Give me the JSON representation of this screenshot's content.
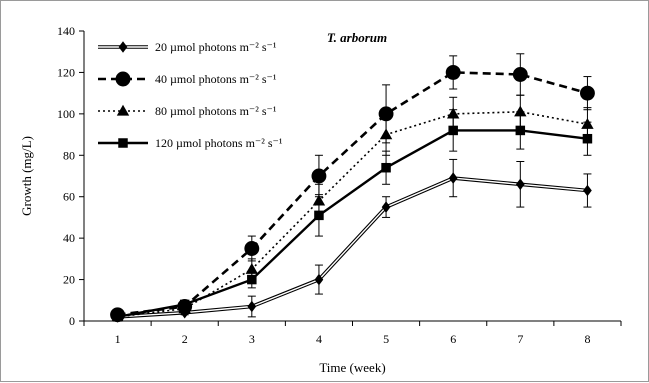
{
  "chart_data": {
    "type": "line",
    "title": "T. arborum",
    "xlabel": "Time (week)",
    "ylabel": "Growth (mg/L)",
    "categories": [
      "1",
      "2",
      "3",
      "4",
      "5",
      "6",
      "7",
      "8"
    ],
    "ylim": [
      0,
      140
    ],
    "yticks": [
      "0",
      "20",
      "40",
      "60",
      "80",
      "100",
      "120",
      "140"
    ],
    "grid": false,
    "legend_position": "top-left",
    "series": [
      {
        "name": "20 µmol photons m⁻² s⁻¹",
        "style": "double-line",
        "marker": "diamond",
        "color": "#000000",
        "values": [
          2,
          4,
          7,
          20,
          55,
          69,
          66,
          63
        ],
        "errors": [
          1,
          1,
          5,
          7,
          5,
          9,
          11,
          8
        ]
      },
      {
        "name": "40 µmol photons m⁻² s⁻¹",
        "style": "dashed",
        "marker": "circle",
        "color": "#000000",
        "values": [
          3,
          7,
          35,
          70,
          100,
          120,
          119,
          110
        ],
        "errors": [
          1,
          1,
          6,
          10,
          14,
          8,
          10,
          8
        ]
      },
      {
        "name": "80 µmol photons m⁻² s⁻¹",
        "style": "dotted",
        "marker": "triangle",
        "color": "#000000",
        "values": [
          2,
          6,
          25,
          58,
          90,
          100,
          101,
          95
        ],
        "errors": [
          1,
          1,
          5,
          8,
          10,
          8,
          8,
          8
        ]
      },
      {
        "name": "120 µmol photons m⁻² s⁻¹",
        "style": "solid",
        "marker": "square",
        "color": "#000000",
        "values": [
          2,
          8,
          20,
          51,
          74,
          92,
          92,
          88
        ],
        "errors": [
          1,
          1,
          4,
          10,
          8,
          10,
          9,
          8
        ]
      }
    ]
  }
}
